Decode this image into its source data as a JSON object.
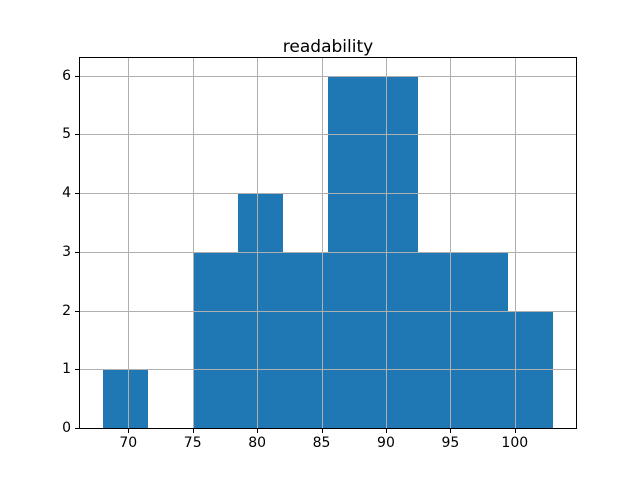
{
  "title": "readability",
  "chart_data": {
    "type": "bar",
    "subtype": "histogram",
    "title": "readability",
    "xlabel": "",
    "ylabel": "",
    "bin_edges": [
      68,
      71.5,
      75,
      78.5,
      82,
      85.5,
      89,
      92.5,
      96,
      99.5,
      103
    ],
    "counts": [
      1,
      0,
      3,
      4,
      3,
      6,
      6,
      3,
      3,
      2
    ],
    "xticks": [
      70,
      75,
      80,
      85,
      90,
      95,
      100
    ],
    "yticks": [
      0,
      1,
      2,
      3,
      4,
      5,
      6
    ],
    "xlim": [
      66.25,
      104.75
    ],
    "ylim": [
      0,
      6.3
    ],
    "grid": true,
    "grid_over_bars": true,
    "legend": null,
    "colors": {
      "bar": "#1f77b4",
      "grid": "#b0b0b0",
      "axis": "#000000",
      "background": "#ffffff",
      "text": "#000000"
    }
  }
}
